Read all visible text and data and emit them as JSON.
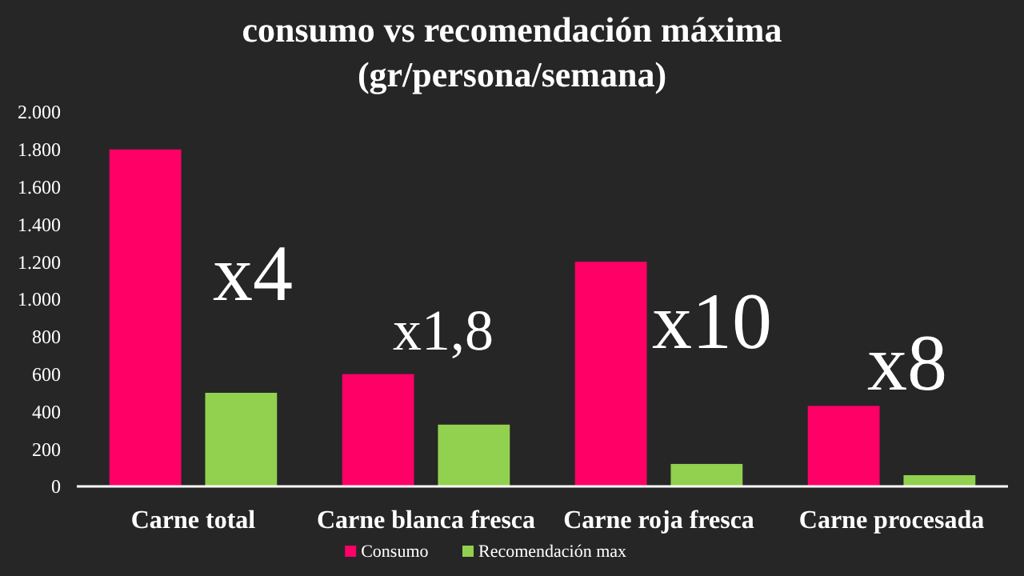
{
  "chart_data": {
    "type": "bar",
    "title": "consumo vs recomendación máxima",
    "subtitle": "(gr/persona/semana)",
    "categories": [
      "Carne total",
      "Carne blanca fresca",
      "Carne roja fresca",
      "Carne procesada"
    ],
    "series": [
      {
        "name": "Consumo",
        "color": "#ff0066",
        "values": [
          1800,
          600,
          1200,
          430
        ]
      },
      {
        "name": "Recomendación max",
        "color": "#92d050",
        "values": [
          500,
          330,
          120,
          60
        ]
      }
    ],
    "ylim": [
      0,
      2000
    ],
    "yticks": [
      0,
      200,
      400,
      600,
      800,
      {
        "value": 1000,
        "label": "1.000"
      },
      {
        "value": 1200,
        "label": "1.200"
      },
      {
        "value": 1400,
        "label": "1.400"
      },
      {
        "value": 1600,
        "label": "1.600"
      },
      {
        "value": 1800,
        "label": "1.800"
      },
      {
        "value": 2000,
        "label": "2.000"
      }
    ],
    "annotations": [
      "x4",
      "x1,8",
      "x10",
      "x8"
    ],
    "grid": false,
    "legend": "bottom"
  }
}
